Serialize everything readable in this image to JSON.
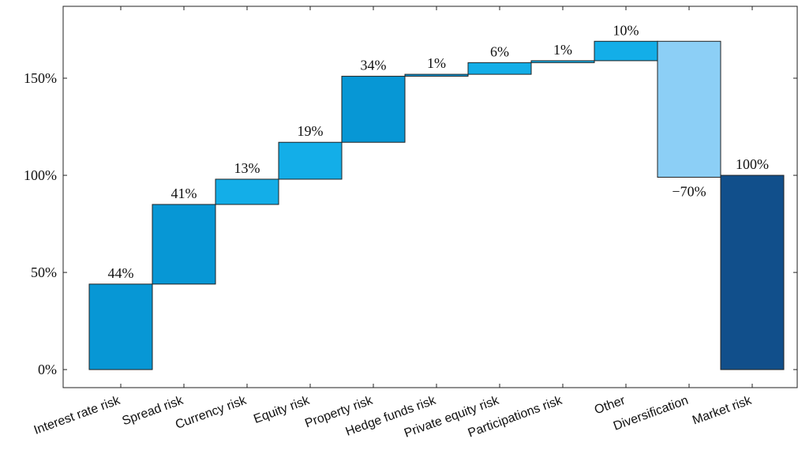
{
  "chart_data": {
    "type": "waterfall",
    "categories": [
      "Interest rate risk",
      "Spread risk",
      "Currency risk",
      "Equity risk",
      "Property risk",
      "Hedge funds risk",
      "Private equity risk",
      "Participations risk",
      "Other",
      "Diversification",
      "Market risk"
    ],
    "values": [
      44,
      41,
      13,
      19,
      34,
      1,
      6,
      1,
      10,
      -70,
      100
    ],
    "value_labels": [
      "44%",
      "41%",
      "13%",
      "19%",
      "34%",
      "1%",
      "6%",
      "1%",
      "10%",
      "−70%",
      "100%"
    ],
    "measure": [
      "relative",
      "relative",
      "relative",
      "relative",
      "relative",
      "relative",
      "relative",
      "relative",
      "relative",
      "relative",
      "total"
    ],
    "colors": [
      "#0797d5",
      "#0797d5",
      "#13aee8",
      "#13aee8",
      "#0797d5",
      "#0797d5",
      "#13aee8",
      "#13aee8",
      "#13aee8",
      "#8ccff6",
      "#114f8b"
    ],
    "ylim": [
      -9.3,
      187
    ],
    "yticks": [
      {
        "value": 0,
        "label": "0%"
      },
      {
        "value": 50,
        "label": "50%"
      },
      {
        "value": 100,
        "label": "100%"
      },
      {
        "value": 150,
        "label": "150%"
      }
    ],
    "grid": false
  }
}
